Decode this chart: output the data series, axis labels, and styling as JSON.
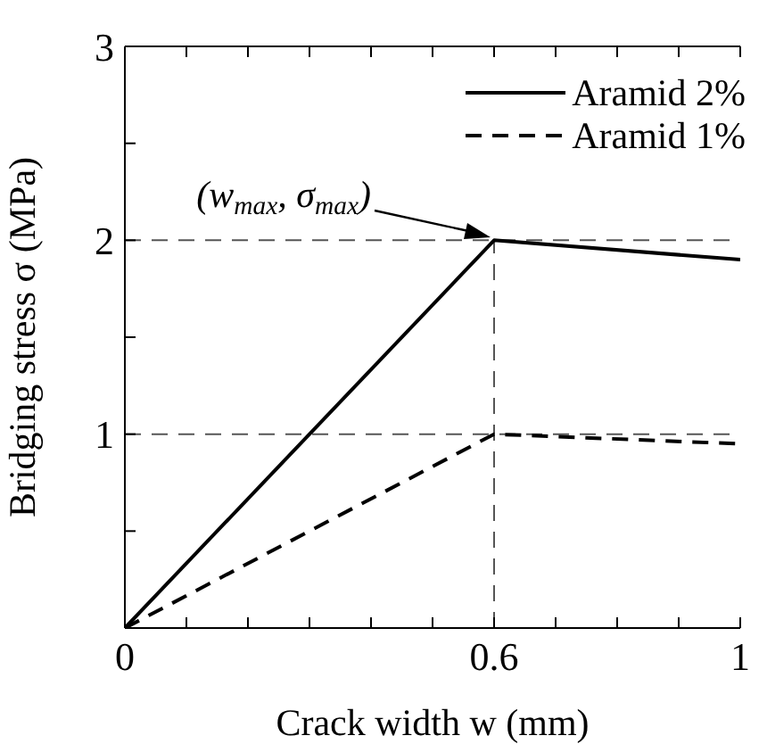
{
  "chart_data": {
    "type": "line",
    "xlabel": "Crack width w (mm)",
    "ylabel": "Bridging stress σ (MPa)",
    "xlim": [
      0,
      1
    ],
    "xticks": [
      0,
      {
        "value": 0.1,
        "label": null
      },
      {
        "value": 0.2,
        "label": null
      },
      {
        "value": 0.3,
        "label": null
      },
      {
        "value": 0.4,
        "label": null
      },
      {
        "value": 0.5,
        "label": null
      },
      0.6,
      {
        "value": 0.7,
        "label": null
      },
      {
        "value": 0.8,
        "label": null
      },
      {
        "value": 0.9,
        "label": null
      },
      1
    ],
    "ylim": [
      0,
      3
    ],
    "yticks": [
      {
        "value": 0,
        "label": null
      },
      {
        "value": 0.5,
        "label": null
      },
      1,
      {
        "value": 1.5,
        "label": null
      },
      2,
      {
        "value": 2.5,
        "label": null
      },
      3
    ],
    "legend": "top right",
    "marker": "none",
    "series": [
      {
        "name": "Aramid 2%",
        "color": "#000000",
        "line_style": "solid",
        "x": [
          0,
          0.6,
          1
        ],
        "values": [
          0,
          2,
          1.9
        ]
      },
      {
        "name": "Aramid 1%",
        "color": "#000000",
        "line_style": "dashed",
        "x": [
          0,
          0.6,
          1
        ],
        "values": [
          0,
          1,
          0.95
        ]
      }
    ],
    "ref_lines": [
      {
        "axis": "y",
        "value": 2,
        "color": "#555555",
        "line_style": "dashed"
      },
      {
        "axis": "y",
        "value": 1,
        "color": "#555555",
        "line_style": "dashed"
      },
      {
        "axis": "x",
        "value": 0.6,
        "color": "#555555",
        "line_style": "dashed"
      }
    ],
    "annotations": [
      "(w$_{max}$, σ$_{max}$)"
    ]
  }
}
